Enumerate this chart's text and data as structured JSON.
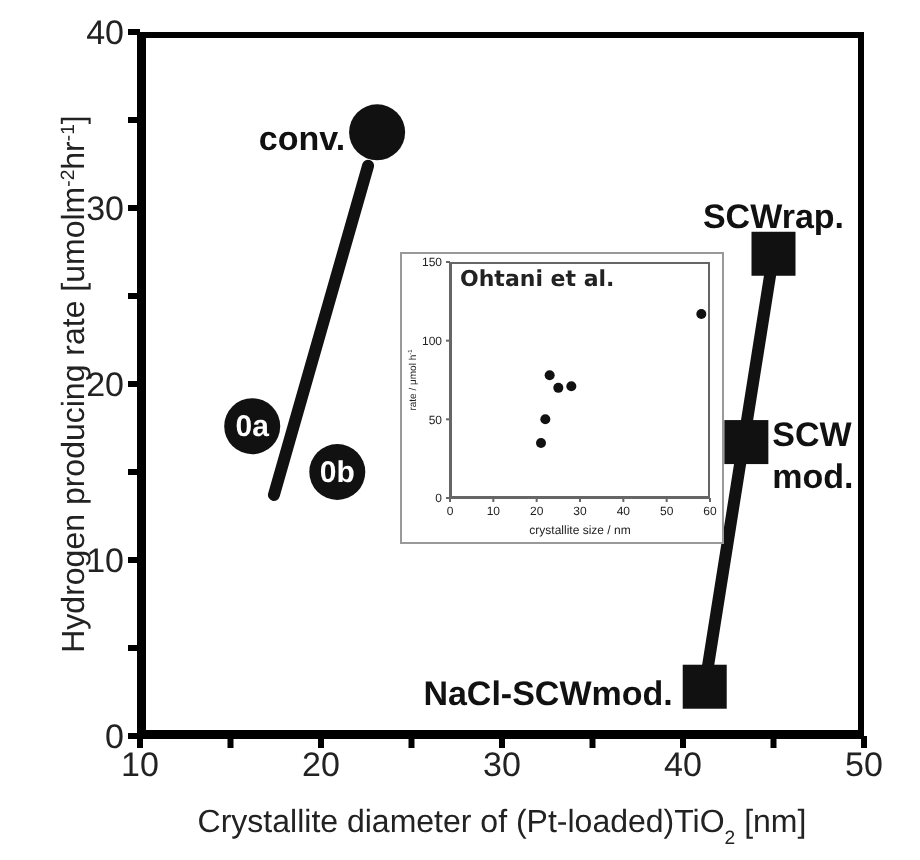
{
  "chart_data": [
    {
      "type": "scatter",
      "xlabel": "Crystallite diameter of (Pt-loaded)TiO$_{2}$ [nm]",
      "ylabel": "Hydrogen producing rate [umolm$^{-2}$hr$^{-1}$]",
      "xlim": [
        10,
        50
      ],
      "xticks": [
        10,
        {
          "value": 15,
          "label": null
        },
        20,
        {
          "value": 25,
          "label": null
        },
        30,
        {
          "value": 35,
          "label": null
        },
        40,
        {
          "value": 45,
          "label": null
        },
        50
      ],
      "ylim": [
        0,
        40
      ],
      "yticks": [
        0,
        {
          "value": 5,
          "label": null
        },
        10,
        {
          "value": 15,
          "label": null
        },
        20,
        {
          "value": 25,
          "label": null
        },
        30,
        {
          "value": 35,
          "label": null
        },
        40
      ],
      "series": [
        {
          "type": "line",
          "color": "#111111",
          "x": [
            17.4,
            22.6
          ],
          "values": [
            13.7,
            32.4
          ]
        },
        {
          "type": "line",
          "color": "#111111",
          "x": [
            41.2,
            45.0
          ],
          "values": [
            2.8,
            27.4
          ]
        },
        {
          "type": "scatter",
          "marker": "circle",
          "color": "#111111",
          "x": [
            23.1,
            16.2,
            20.9
          ],
          "values": [
            34.3,
            17.6,
            15.0
          ]
        },
        {
          "type": "scatter",
          "marker": "square",
          "color": "#111111",
          "x": [
            41.2,
            43.5,
            45.0
          ],
          "values": [
            2.8,
            16.7,
            27.4
          ]
        }
      ],
      "annotations": [
        {
          "text": "conv.",
          "x": 23.1,
          "y": 34.3
        },
        {
          "text": "0a",
          "x": 16.2,
          "y": 17.6
        },
        {
          "text": "0b",
          "x": 20.9,
          "y": 15.0
        },
        {
          "text": "SCWrap.",
          "x": 45.0,
          "y": 27.4
        },
        {
          "text": "SCW\nmod.",
          "x": 43.5,
          "y": 16.7
        },
        {
          "text": "NaCl-SCWmod.",
          "x": 41.2,
          "y": 2.8
        }
      ]
    },
    {
      "type": "scatter",
      "xlabel": "crystallite size / nm",
      "ylabel": "rate / μmol h$^{-1}$",
      "xlim": [
        0,
        60
      ],
      "xticks": [
        0,
        10,
        20,
        30,
        40,
        50,
        60
      ],
      "ylim": [
        0,
        150
      ],
      "yticks": [
        0,
        50,
        100,
        150
      ],
      "series": [
        {
          "type": "scatter",
          "marker": "circle",
          "color": "#111111",
          "x": [
            21,
            22,
            23,
            25,
            28,
            58
          ],
          "values": [
            35,
            50,
            78,
            70,
            71,
            117
          ]
        }
      ],
      "annotations": [
        "Ohtani et al."
      ]
    }
  ]
}
